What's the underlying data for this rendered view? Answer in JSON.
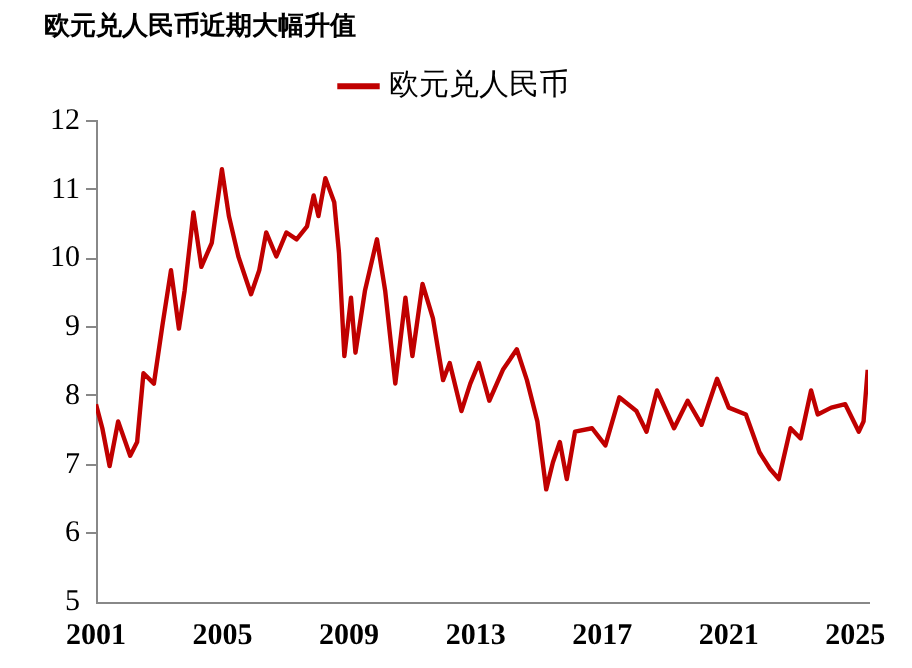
{
  "chart_data": {
    "type": "line",
    "title": "欧元兑人民币近期大幅升值",
    "xlim": [
      2001,
      2025.4
    ],
    "xticks": [
      2001,
      2005,
      2009,
      2013,
      2017,
      2021,
      2025
    ],
    "ylim": [
      5,
      12
    ],
    "yticks": [
      5,
      6,
      7,
      8,
      9,
      10,
      11,
      12
    ],
    "grid": false,
    "legend": "top",
    "marker": "none",
    "line_style": "solid",
    "x": [
      2001.0,
      2001.2,
      2001.43,
      2001.7,
      2002.08,
      2002.3,
      2002.5,
      2002.83,
      2003.1,
      2003.37,
      2003.62,
      2003.8,
      2004.08,
      2004.33,
      2004.66,
      2004.98,
      2005.2,
      2005.5,
      2005.9,
      2006.16,
      2006.38,
      2006.7,
      2007.02,
      2007.34,
      2007.67,
      2007.88,
      2008.03,
      2008.25,
      2008.53,
      2008.68,
      2008.85,
      2009.06,
      2009.2,
      2009.5,
      2009.88,
      2010.14,
      2010.46,
      2010.78,
      2011.0,
      2011.32,
      2011.65,
      2011.97,
      2012.18,
      2012.55,
      2012.83,
      2013.1,
      2013.43,
      2013.86,
      2014.3,
      2014.62,
      2014.95,
      2015.23,
      2015.44,
      2015.66,
      2015.88,
      2016.14,
      2016.68,
      2017.1,
      2017.54,
      2018.08,
      2018.4,
      2018.73,
      2019.27,
      2019.7,
      2020.14,
      2020.63,
      2021.0,
      2021.54,
      2021.97,
      2022.3,
      2022.58,
      2022.95,
      2023.27,
      2023.6,
      2023.81,
      2024.24,
      2024.68,
      2025.11,
      2025.26,
      2025.39
    ],
    "series": [
      {
        "name": "欧元兑人民币",
        "color": "#c00000",
        "values": [
          7.88,
          7.53,
          6.98,
          7.63,
          7.13,
          7.33,
          8.33,
          8.18,
          9.03,
          9.83,
          8.98,
          9.53,
          10.67,
          9.88,
          10.23,
          11.3,
          10.62,
          10.03,
          9.48,
          9.83,
          10.38,
          10.03,
          10.38,
          10.28,
          10.47,
          10.92,
          10.62,
          11.17,
          10.82,
          10.08,
          8.58,
          9.43,
          8.63,
          9.53,
          10.28,
          9.53,
          8.18,
          9.43,
          8.58,
          9.63,
          9.13,
          8.23,
          8.48,
          7.78,
          8.18,
          8.48,
          7.93,
          8.38,
          8.68,
          8.23,
          7.63,
          6.64,
          7.03,
          7.33,
          6.79,
          7.48,
          7.53,
          7.28,
          7.98,
          7.78,
          7.48,
          8.08,
          7.53,
          7.93,
          7.58,
          8.25,
          7.83,
          7.73,
          7.18,
          6.94,
          6.79,
          7.53,
          7.38,
          8.08,
          7.73,
          7.83,
          7.88,
          7.48,
          7.63,
          8.38
        ]
      }
    ]
  }
}
